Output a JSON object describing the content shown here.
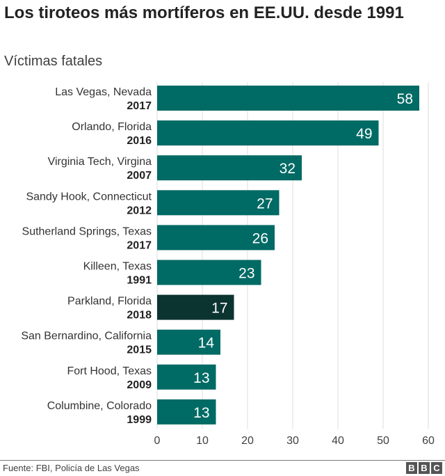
{
  "header": {
    "title": "Los tiroteos más mortíferos en EE.UU. desde 1991",
    "subtitle": "Víctimas fatales"
  },
  "footer": {
    "source": "Fuente: FBI, Policía de Las Vegas",
    "logo": "BBC"
  },
  "colors": {
    "bar": "#006a64",
    "highlight": "#0b3431",
    "grid": "#dcdcdc"
  },
  "chart_data": {
    "type": "bar",
    "orientation": "horizontal",
    "title": "Los tiroteos más mortíferos en EE.UU. desde 1991",
    "ylabel": "Víctimas fatales",
    "categories": [
      {
        "place": "Las Vegas, Nevada",
        "year": "2017"
      },
      {
        "place": "Orlando, Florida",
        "year": "2016"
      },
      {
        "place": "Virginia Tech, Virgina",
        "year": "2007"
      },
      {
        "place": "Sandy Hook, Connecticut",
        "year": "2012"
      },
      {
        "place": "Sutherland Springs, Texas",
        "year": "2017"
      },
      {
        "place": "Killeen, Texas",
        "year": "1991"
      },
      {
        "place": "Parkland, Florida",
        "year": "2018"
      },
      {
        "place": "San Bernardino, California",
        "year": "2015"
      },
      {
        "place": "Fort Hood, Texas",
        "year": "2009"
      },
      {
        "place": "Columbine, Colorado",
        "year": "1999"
      }
    ],
    "values": [
      58,
      49,
      32,
      27,
      26,
      23,
      17,
      14,
      13,
      13
    ],
    "highlight_index": 6,
    "xlim": [
      0,
      60
    ],
    "xticks": [
      0,
      10,
      20,
      30,
      40,
      50,
      60
    ],
    "grid": true
  }
}
